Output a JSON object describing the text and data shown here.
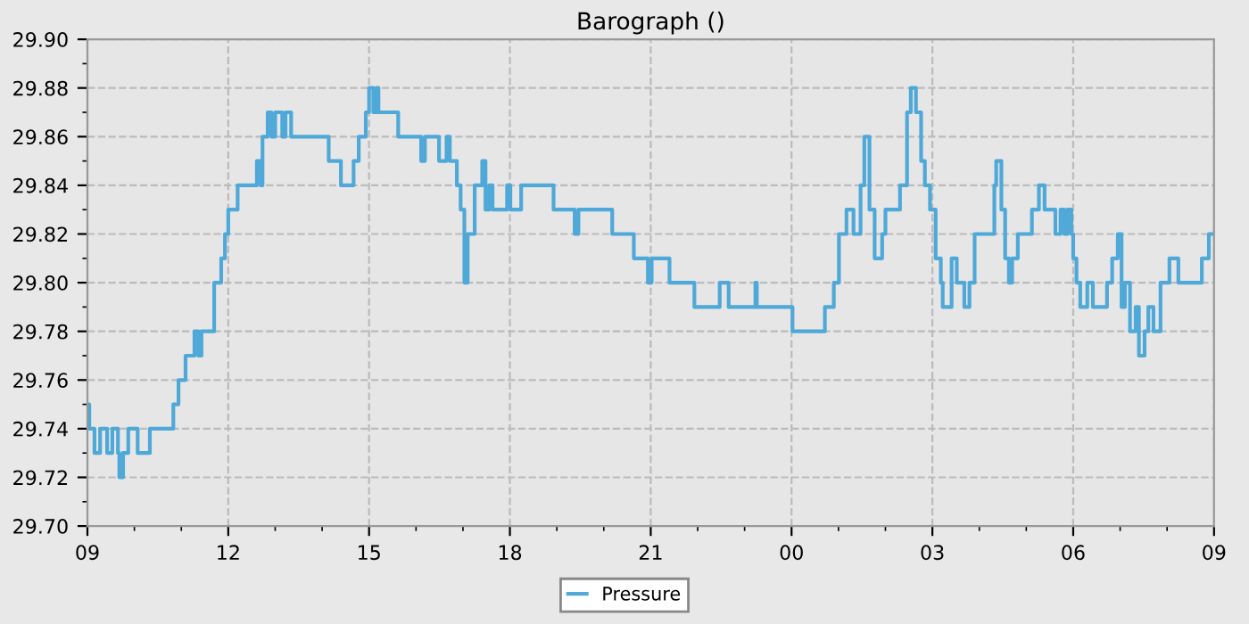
{
  "chart_data": {
    "type": "step",
    "title": "Barograph ()",
    "xlim": [
      9,
      33
    ],
    "xticks": [
      {
        "value": 9,
        "label": "09"
      },
      {
        "value": 12,
        "label": "12"
      },
      {
        "value": 15,
        "label": "15"
      },
      {
        "value": 18,
        "label": "18"
      },
      {
        "value": 21,
        "label": "21"
      },
      {
        "value": 24,
        "label": "00"
      },
      {
        "value": 27,
        "label": "03"
      },
      {
        "value": 30,
        "label": "06"
      },
      {
        "value": 33,
        "label": "09"
      }
    ],
    "ylim": [
      29.7,
      29.9
    ],
    "yticks": [
      {
        "value": 29.7,
        "label": "29.70"
      },
      {
        "value": 29.72,
        "label": "29.72"
      },
      {
        "value": 29.74,
        "label": "29.74"
      },
      {
        "value": 29.76,
        "label": "29.76"
      },
      {
        "value": 29.78,
        "label": "29.78"
      },
      {
        "value": 29.8,
        "label": "29.80"
      },
      {
        "value": 29.82,
        "label": "29.82"
      },
      {
        "value": 29.84,
        "label": "29.84"
      },
      {
        "value": 29.86,
        "label": "29.86"
      },
      {
        "value": 29.88,
        "label": "29.88"
      },
      {
        "value": 29.9,
        "label": "29.90"
      }
    ],
    "grid": true,
    "legend": "bottom",
    "line_style": "solid",
    "series": [
      {
        "name": "Pressure",
        "color": "#4ea8d8",
        "x": [
          9.0,
          9.04,
          9.15,
          9.27,
          9.42,
          9.53,
          9.65,
          9.68,
          9.76,
          9.87,
          10.07,
          10.33,
          10.83,
          10.94,
          11.09,
          11.28,
          11.36,
          11.43,
          11.7,
          11.85,
          11.93,
          12.0,
          12.2,
          12.61,
          12.69,
          12.73,
          12.84,
          12.92,
          13.0,
          13.15,
          13.22,
          13.34,
          14.14,
          14.4,
          14.67,
          14.78,
          14.93,
          15.0,
          15.09,
          15.16,
          15.2,
          15.62,
          16.11,
          16.19,
          16.49,
          16.65,
          16.72,
          16.87,
          16.95,
          17.03,
          17.1,
          17.25,
          17.41,
          17.48,
          17.56,
          17.63,
          17.94,
          18.01,
          18.24,
          18.93,
          19.38,
          19.46,
          20.18,
          20.64,
          20.94,
          21.02,
          21.4,
          21.93,
          22.47,
          22.66,
          23.23,
          23.26,
          24.02,
          24.71,
          24.9,
          25.01,
          25.17,
          25.32,
          25.47,
          25.55,
          25.66,
          25.77,
          25.93,
          26.0,
          26.31,
          26.46,
          26.54,
          26.65,
          26.76,
          26.84,
          26.95,
          27.07,
          27.18,
          27.22,
          27.41,
          27.52,
          27.68,
          27.79,
          27.9,
          28.32,
          28.36,
          28.47,
          28.55,
          28.63,
          28.7,
          28.82,
          29.12,
          29.27,
          29.39,
          29.62,
          29.73,
          29.81,
          29.88,
          29.96,
          30.0,
          30.07,
          30.15,
          30.3,
          30.42,
          30.57,
          30.72,
          30.83,
          30.95,
          31.03,
          31.1,
          31.21,
          31.33,
          31.4,
          31.52,
          31.6,
          31.71,
          31.86,
          32.05,
          32.24,
          32.74,
          32.89,
          33.0
        ],
        "values": [
          29.75,
          29.74,
          29.73,
          29.74,
          29.73,
          29.74,
          29.73,
          29.72,
          29.73,
          29.74,
          29.73,
          29.74,
          29.75,
          29.76,
          29.77,
          29.78,
          29.77,
          29.78,
          29.8,
          29.81,
          29.82,
          29.83,
          29.84,
          29.85,
          29.84,
          29.86,
          29.87,
          29.86,
          29.87,
          29.86,
          29.87,
          29.86,
          29.85,
          29.84,
          29.85,
          29.86,
          29.87,
          29.88,
          29.87,
          29.88,
          29.87,
          29.86,
          29.85,
          29.86,
          29.85,
          29.86,
          29.85,
          29.84,
          29.83,
          29.8,
          29.82,
          29.84,
          29.85,
          29.83,
          29.84,
          29.83,
          29.84,
          29.83,
          29.84,
          29.83,
          29.82,
          29.83,
          29.82,
          29.81,
          29.8,
          29.81,
          29.8,
          29.79,
          29.8,
          29.79,
          29.8,
          29.79,
          29.78,
          29.79,
          29.8,
          29.82,
          29.83,
          29.82,
          29.84,
          29.86,
          29.83,
          29.81,
          29.82,
          29.83,
          29.84,
          29.87,
          29.88,
          29.87,
          29.85,
          29.84,
          29.83,
          29.81,
          29.8,
          29.79,
          29.81,
          29.8,
          29.79,
          29.8,
          29.82,
          29.84,
          29.85,
          29.83,
          29.81,
          29.8,
          29.81,
          29.82,
          29.83,
          29.84,
          29.83,
          29.82,
          29.83,
          29.82,
          29.83,
          29.82,
          29.81,
          29.8,
          29.79,
          29.8,
          29.79,
          29.79,
          29.8,
          29.81,
          29.82,
          29.79,
          29.8,
          29.78,
          29.79,
          29.77,
          29.78,
          29.79,
          29.78,
          29.8,
          29.81,
          29.8,
          29.81,
          29.82,
          29.82
        ]
      }
    ]
  }
}
